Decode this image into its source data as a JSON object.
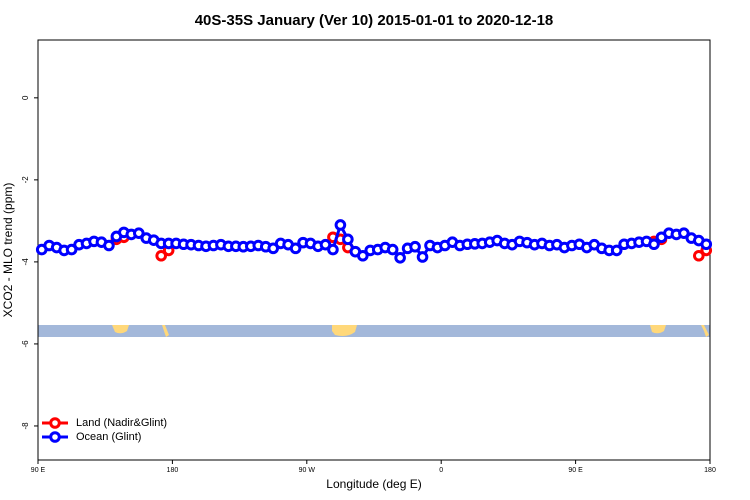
{
  "chart_data": {
    "type": "line",
    "title": "40S-35S January (Ver 10)   2015-01-01 to 2020-12-18",
    "xlabel": "Longitude (deg E)",
    "ylabel": "XCO2 - MLO trend (ppm)",
    "xlim": [
      90,
      540
    ],
    "xticks": [
      {
        "value": 90,
        "label": "90 E"
      },
      180,
      {
        "value": 270,
        "label": "90 W"
      },
      {
        "value": 360,
        "label": "0"
      },
      {
        "value": 450,
        "label": "90 E"
      },
      {
        "value": 540,
        "label": "180"
      }
    ],
    "ylim": [
      -8.83,
      1.41
    ],
    "yticks": [
      0,
      -2,
      -4,
      -6,
      -8
    ],
    "legend": "bottom-left",
    "series": [
      {
        "name": "Land (Nadir&Glint)",
        "color": "#ff0000",
        "x": [
          142.5,
          147.5,
          160,
          172.5,
          177.5,
          230,
          287.5,
          292.5,
          297.5,
          400,
          502.5,
          507.5,
          520,
          532.5,
          537.5
        ],
        "values": [
          -3.45,
          -3.4,
          null,
          -3.85,
          -3.72,
          null,
          -3.4,
          -3.45,
          -3.65,
          null,
          -3.5,
          -3.45,
          null,
          -3.85,
          -3.72
        ]
      },
      {
        "name": "Ocean (Glint)",
        "color": "#0000ff",
        "x": [
          92.5,
          97.5,
          102.5,
          107.5,
          112.5,
          117.5,
          122.5,
          127.5,
          132.5,
          137.5,
          142.5,
          147.5,
          152.5,
          157.5,
          162.5,
          167.5,
          172.5,
          177.5,
          182.5,
          187.5,
          192.5,
          197.5,
          202.5,
          207.5,
          212.5,
          217.5,
          222.5,
          227.5,
          232.5,
          237.5,
          242.5,
          247.5,
          252.5,
          257.5,
          262.5,
          267.5,
          272.5,
          277.5,
          282.5,
          287.5,
          292.5,
          297.5,
          302.5,
          307.5,
          312.5,
          317.5,
          322.5,
          327.5,
          332.5,
          337.5,
          342.5,
          347.5,
          352.5,
          357.5,
          362.5,
          367.5,
          372.5,
          377.5,
          382.5,
          387.5,
          392.5,
          397.5,
          402.5,
          407.5,
          412.5,
          417.5,
          422.5,
          427.5,
          432.5,
          437.5,
          442.5,
          447.5,
          452.5,
          457.5,
          462.5,
          467.5,
          472.5,
          477.5,
          482.5,
          487.5,
          492.5,
          497.5,
          502.5,
          507.5,
          512.5,
          517.5,
          522.5,
          527.5,
          532.5,
          537.5
        ],
        "values": [
          -3.7,
          -3.6,
          -3.65,
          -3.72,
          -3.7,
          -3.58,
          -3.55,
          -3.5,
          -3.52,
          -3.6,
          -3.38,
          -3.28,
          -3.33,
          -3.3,
          -3.42,
          -3.47,
          -3.55,
          -3.55,
          -3.55,
          -3.57,
          -3.58,
          -3.6,
          -3.62,
          -3.6,
          -3.58,
          -3.62,
          -3.62,
          -3.63,
          -3.62,
          -3.6,
          -3.63,
          -3.67,
          -3.55,
          -3.58,
          -3.67,
          -3.53,
          -3.55,
          -3.62,
          -3.58,
          -3.7,
          -3.1,
          -3.45,
          -3.75,
          -3.85,
          -3.72,
          -3.7,
          -3.65,
          -3.7,
          -3.9,
          -3.67,
          -3.63,
          -3.88,
          -3.6,
          -3.65,
          -3.6,
          -3.52,
          -3.6,
          -3.57,
          -3.56,
          -3.55,
          -3.52,
          -3.48,
          -3.55,
          -3.58,
          -3.5,
          -3.53,
          -3.58,
          -3.55,
          -3.6,
          -3.58,
          -3.65,
          -3.6,
          -3.57,
          -3.65,
          -3.58,
          -3.67,
          -3.72,
          -3.72,
          -3.57,
          -3.55,
          -3.52,
          -3.5,
          -3.57,
          -3.4,
          -3.3,
          -3.33,
          -3.3,
          -3.42,
          -3.48,
          -3.57
        ]
      }
    ]
  }
}
